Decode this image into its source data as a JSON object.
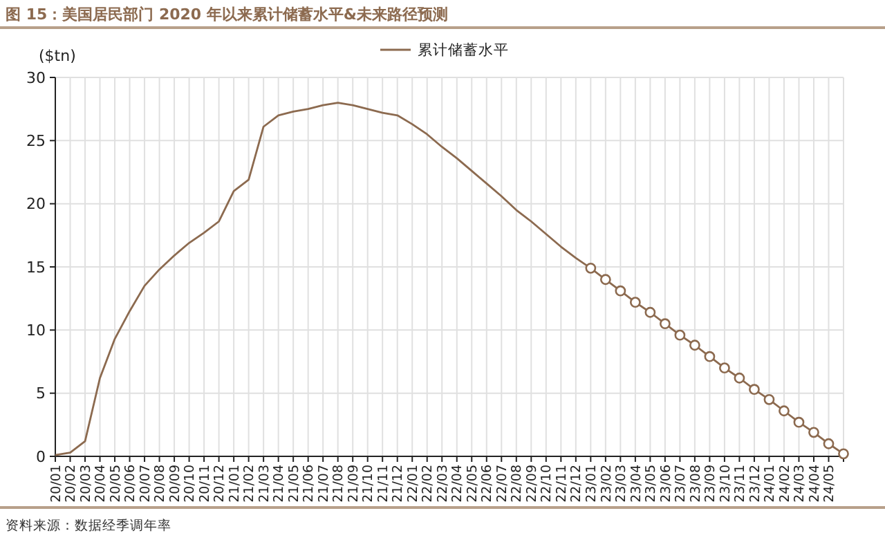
{
  "chart_data": {
    "type": "line",
    "title": "图 15：美国居民部门 2020 年以来累计储蓄水平&未来路径预测",
    "ylabel": "($tn)",
    "annotations": [
      "资料来源：数据经季调年率"
    ],
    "categories": [
      "20/01",
      "20/02",
      "20/03",
      "20/04",
      "20/05",
      "20/06",
      "20/07",
      "20/08",
      "20/09",
      "20/10",
      "20/11",
      "20/12",
      "21/01",
      "21/02",
      "21/03",
      "21/04",
      "21/05",
      "21/06",
      "21/07",
      "21/08",
      "21/09",
      "21/10",
      "21/11",
      "21/12",
      "22/01",
      "22/02",
      "22/03",
      "22/04",
      "22/05",
      "22/06",
      "22/07",
      "22/08",
      "22/09",
      "22/10",
      "22/11",
      "22/12",
      "23/01",
      "23/02",
      "23/03",
      "23/04",
      "23/05",
      "23/06",
      "23/07",
      "23/08",
      "23/09",
      "23/10",
      "23/11",
      "23/12",
      "24/01",
      "24/02",
      "24/03",
      "24/04",
      "24/05",
      null
    ],
    "series": [
      {
        "name": "累计储蓄水平",
        "color": "#8c6a4f",
        "marker": "none",
        "values": [
          0.1,
          0.3,
          1.2,
          6.2,
          9.3,
          11.5,
          13.5,
          14.8,
          15.9,
          16.9,
          17.7,
          18.6,
          21.0,
          21.9,
          26.1,
          27.0,
          27.3,
          27.5,
          27.8,
          28.0,
          27.8,
          27.5,
          27.2,
          27.0,
          26.3,
          25.5,
          24.5,
          23.6,
          22.6,
          21.6,
          20.6,
          19.5,
          18.6,
          17.6,
          16.6,
          15.7,
          14.9,
          null,
          null,
          null,
          null,
          null,
          null,
          null,
          null,
          null,
          null,
          null,
          null,
          null,
          null,
          null,
          null,
          null
        ]
      },
      {
        "color": "#8c6a4f",
        "marker": "circle",
        "values": [
          null,
          null,
          null,
          null,
          null,
          null,
          null,
          null,
          null,
          null,
          null,
          null,
          null,
          null,
          null,
          null,
          null,
          null,
          null,
          null,
          null,
          null,
          null,
          null,
          null,
          null,
          null,
          null,
          null,
          null,
          null,
          null,
          null,
          null,
          null,
          null,
          14.9,
          14.0,
          13.1,
          12.2,
          11.4,
          10.5,
          9.6,
          8.8,
          7.9,
          7.0,
          6.2,
          5.3,
          4.5,
          3.6,
          2.7,
          1.9,
          1.0,
          0.2
        ]
      }
    ],
    "ylim": [
      0,
      30
    ],
    "yticks": [
      0,
      5,
      10,
      15,
      20,
      25,
      30
    ],
    "grid": true,
    "legend": "top"
  }
}
